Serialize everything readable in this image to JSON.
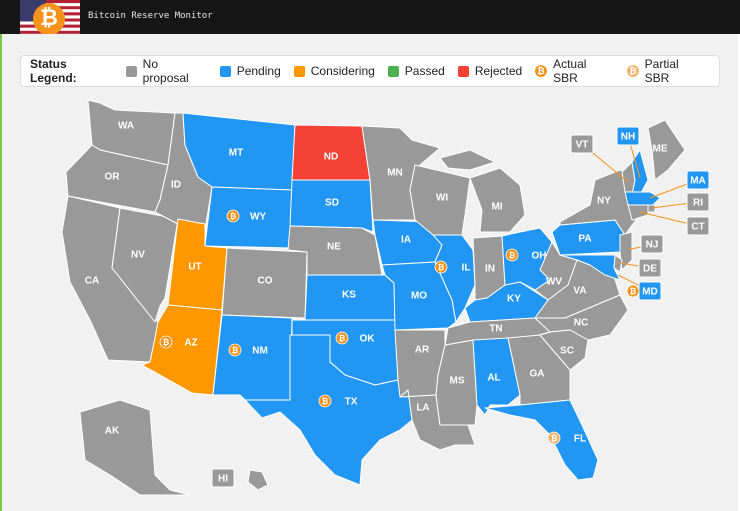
{
  "header": {
    "title": "Bitcoin Reserve Monitor",
    "logo_icon": "bitcoin-icon"
  },
  "legend": {
    "title": "Status Legend:",
    "items": [
      {
        "key": "none",
        "label": "No proposal",
        "color": "#999999"
      },
      {
        "key": "pending",
        "label": "Pending",
        "color": "#2196f3"
      },
      {
        "key": "considering",
        "label": "Considering",
        "color": "#ff9800"
      },
      {
        "key": "passed",
        "label": "Passed",
        "color": "#4caf50"
      },
      {
        "key": "rejected",
        "label": "Rejected",
        "color": "#f44336"
      }
    ],
    "sbr": [
      {
        "key": "actual",
        "label": "Actual SBR",
        "icon": "bitcoin-icon"
      },
      {
        "key": "partial",
        "label": "Partial SBR",
        "icon": "bitcoin-icon"
      }
    ]
  },
  "colors": {
    "none": "#999999",
    "pending": "#2196f3",
    "considering": "#ff9800",
    "passed": "#4caf50",
    "rejected": "#f44336",
    "coin": "#f7931a",
    "coin_partial": "#f4b36a"
  },
  "states": {
    "WA": {
      "status": "none"
    },
    "OR": {
      "status": "none"
    },
    "CA": {
      "status": "none"
    },
    "NV": {
      "status": "none"
    },
    "ID": {
      "status": "none"
    },
    "MT": {
      "status": "pending"
    },
    "WY": {
      "status": "pending",
      "sbr": "actual"
    },
    "UT": {
      "status": "considering"
    },
    "AZ": {
      "status": "considering",
      "sbr": "actual"
    },
    "CO": {
      "status": "none"
    },
    "NM": {
      "status": "pending",
      "sbr": "actual"
    },
    "ND": {
      "status": "rejected"
    },
    "SD": {
      "status": "pending"
    },
    "NE": {
      "status": "none"
    },
    "KS": {
      "status": "pending"
    },
    "OK": {
      "status": "pending",
      "sbr": "actual"
    },
    "TX": {
      "status": "pending",
      "sbr": "actual"
    },
    "MN": {
      "status": "none"
    },
    "IA": {
      "status": "pending"
    },
    "MO": {
      "status": "pending"
    },
    "AR": {
      "status": "none"
    },
    "LA": {
      "status": "none"
    },
    "WI": {
      "status": "none"
    },
    "IL": {
      "status": "pending",
      "sbr": "actual"
    },
    "MS": {
      "status": "none"
    },
    "MI": {
      "status": "none"
    },
    "IN": {
      "status": "none"
    },
    "KY": {
      "status": "pending"
    },
    "TN": {
      "status": "none"
    },
    "AL": {
      "status": "pending"
    },
    "OH": {
      "status": "pending",
      "sbr": "actual"
    },
    "GA": {
      "status": "none"
    },
    "FL": {
      "status": "pending",
      "sbr": "partial"
    },
    "WV": {
      "status": "none"
    },
    "VA": {
      "status": "none"
    },
    "NC": {
      "status": "none"
    },
    "SC": {
      "status": "none"
    },
    "PA": {
      "status": "pending"
    },
    "NY": {
      "status": "none"
    },
    "ME": {
      "status": "none"
    },
    "VT": {
      "status": "none"
    },
    "NH": {
      "status": "pending"
    },
    "MA": {
      "status": "pending"
    },
    "RI": {
      "status": "none"
    },
    "CT": {
      "status": "none"
    },
    "NJ": {
      "status": "none"
    },
    "DE": {
      "status": "none"
    },
    "MD": {
      "status": "pending",
      "sbr": "actual"
    },
    "AK": {
      "status": "none"
    },
    "HI": {
      "status": "none"
    }
  }
}
